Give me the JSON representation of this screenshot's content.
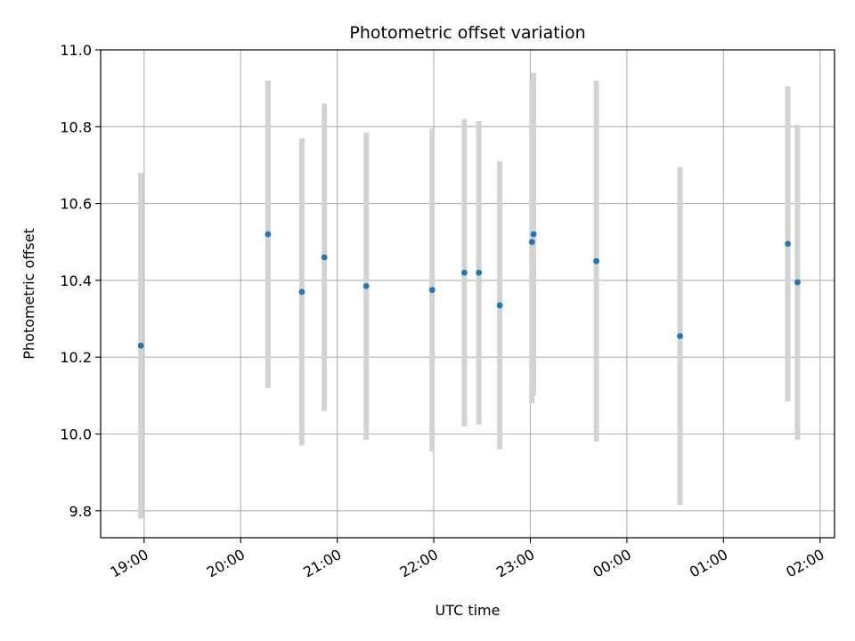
{
  "chart_data": {
    "type": "scatter",
    "title": "Photometric offset variation",
    "xlabel": "UTC time",
    "ylabel": "Photometric offset",
    "xlim": [
      "18:33",
      "02:09"
    ],
    "ylim": [
      9.73,
      11.0
    ],
    "x_ticks": [
      "19:00",
      "20:00",
      "21:00",
      "22:00",
      "23:00",
      "00:00",
      "01:00",
      "02:00"
    ],
    "y_ticks": [
      "9.8",
      "10.0",
      "10.2",
      "10.4",
      "10.6",
      "10.8",
      "11.0"
    ],
    "grid": true,
    "legend": "none",
    "point_color": "#1f77b4",
    "errorbar_color": "#d3d3d3",
    "points": [
      {
        "x": "18:58",
        "y": 10.23,
        "err": 0.45
      },
      {
        "x": "20:17",
        "y": 10.52,
        "err": 0.4
      },
      {
        "x": "20:38",
        "y": 10.37,
        "err": 0.4
      },
      {
        "x": "20:52",
        "y": 10.46,
        "err": 0.4
      },
      {
        "x": "21:18",
        "y": 10.385,
        "err": 0.4
      },
      {
        "x": "21:59",
        "y": 10.375,
        "err": 0.42
      },
      {
        "x": "22:19",
        "y": 10.42,
        "err": 0.4
      },
      {
        "x": "22:28",
        "y": 10.42,
        "err": 0.395
      },
      {
        "x": "22:41",
        "y": 10.335,
        "err": 0.375
      },
      {
        "x": "23:01",
        "y": 10.5,
        "err": 0.42
      },
      {
        "x": "23:02",
        "y": 10.52,
        "err": 0.42
      },
      {
        "x": "23:41",
        "y": 10.45,
        "err": 0.47
      },
      {
        "x": "00:33",
        "y": 10.255,
        "err": 0.44
      },
      {
        "x": "01:40",
        "y": 10.495,
        "err": 0.41
      },
      {
        "x": "01:46",
        "y": 10.395,
        "err": 0.41
      }
    ]
  }
}
